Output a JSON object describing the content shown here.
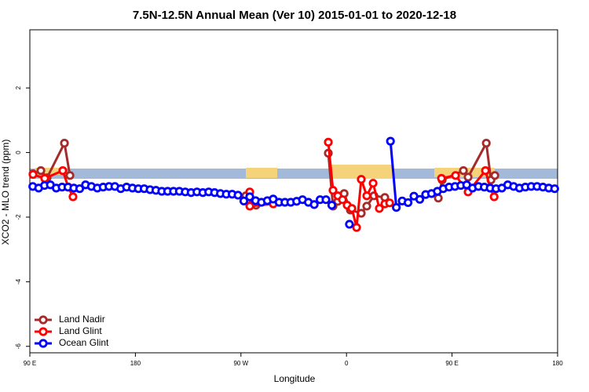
{
  "chart_data": {
    "type": "line",
    "title": "7.5N-12.5N Annual Mean (Ver 10)   2015-01-01 to 2020-12-18",
    "x_label": "Longitude",
    "y_label": "XCO2 - MLO trend (ppm)",
    "xlim": [
      90,
      540
    ],
    "ylim": [
      -6.2,
      3.8
    ],
    "xticks": [
      {
        "value": 90,
        "label": "90 E"
      },
      180,
      {
        "value": 270,
        "label": "90 W"
      },
      {
        "value": 360,
        "label": "0"
      },
      {
        "value": 450,
        "label": "90 E"
      },
      {
        "value": 540,
        "label": "180"
      }
    ],
    "yticks": [
      -6,
      -4,
      -2,
      0,
      2
    ],
    "legend": "bottom-left",
    "series": [
      {
        "name": "Land Nadir",
        "color": "#a52a2a",
        "x": [
          92.7,
          99.4,
          104.7,
          119.5,
          124.2,
          200,
          274.2,
          282.9,
          320,
          344.5,
          348.5,
          352.6,
          358,
          363.3,
          372.6,
          377.3,
          383.4,
          392.7,
          420,
          438.3,
          441.6,
          459.7,
          463.7,
          479.2,
          483.2,
          486.5
        ],
        "values": [
          -0.66,
          -0.56,
          -0.78,
          0.29,
          -0.71,
          null,
          -1.34,
          -1.63,
          null,
          -0.02,
          -1.66,
          -1.51,
          -1.27,
          -1.78,
          -1.88,
          -1.66,
          -1.34,
          -1.39,
          null,
          -1.41,
          -0.85,
          -0.56,
          -0.76,
          0.29,
          -0.85,
          -0.71
        ]
      },
      {
        "name": "Land Glint",
        "color": "#ff0000",
        "x": [
          92.7,
          102.7,
          118.1,
          122.8,
          126.8,
          200,
          277.5,
          277.6,
          297.6,
          320,
          344.5,
          348.5,
          352.6,
          356.6,
          360.6,
          364.6,
          368.6,
          372.6,
          377.3,
          382.7,
          388,
          392.7,
          396.8,
          420,
          441,
          453,
          463.7,
          478.5,
          482.5,
          485.9
        ],
        "values": [
          -0.68,
          -0.8,
          -0.56,
          -1.07,
          -1.37,
          null,
          -1.22,
          -1.66,
          -1.59,
          null,
          0.32,
          -1.17,
          -1.34,
          -1.46,
          -1.63,
          -1.73,
          -2.32,
          -0.83,
          -1.34,
          -0.95,
          -1.73,
          -1.59,
          -1.56,
          null,
          -0.8,
          -0.71,
          -1.22,
          -0.56,
          -1.1,
          -1.37
        ]
      },
      {
        "name": "Ocean Glint",
        "color": "#0000ff",
        "x": [
          92.5,
          97.5,
          102.5,
          107.5,
          112.5,
          117.5,
          122.5,
          127.5,
          132.5,
          137.5,
          142.5,
          147.5,
          152.5,
          157.5,
          162.5,
          167.5,
          172.5,
          177.5,
          182.5,
          187.5,
          192.5,
          197.5,
          202.5,
          207.5,
          212.5,
          217.5,
          222.5,
          227.5,
          232.5,
          237.5,
          242.5,
          247.5,
          252.5,
          257.5,
          262.5,
          267.5,
          272.5,
          277.5,
          282.5,
          287.5,
          292.5,
          297.5,
          302.5,
          307.5,
          312.5,
          317.5,
          322.5,
          327.5,
          332.5,
          337.5,
          342.5,
          347.5,
          352.5,
          357.5,
          362.5,
          367.5,
          372.5,
          377.5,
          382.5,
          387.5,
          392.5,
          397.5,
          402.5,
          407.5,
          412.5,
          417.5,
          422.5,
          427.5,
          432.5,
          437.5,
          442.5,
          447.5,
          452.5,
          457.5,
          462.5,
          467.5,
          472.5,
          477.5,
          482.5,
          487.5,
          492.5,
          497.5,
          502.5,
          507.5,
          512.5,
          517.5,
          522.5,
          527.5,
          532.5,
          537.5
        ],
        "values": [
          -1.05,
          -1.1,
          -1.02,
          -1.0,
          -1.1,
          -1.07,
          -1.07,
          -1.1,
          -1.12,
          -1.0,
          -1.05,
          -1.1,
          -1.07,
          -1.05,
          -1.05,
          -1.12,
          -1.07,
          -1.1,
          -1.12,
          -1.12,
          -1.15,
          -1.17,
          -1.2,
          -1.2,
          -1.2,
          -1.2,
          -1.22,
          -1.24,
          -1.22,
          -1.24,
          -1.22,
          -1.24,
          -1.27,
          -1.29,
          -1.29,
          -1.32,
          -1.5,
          -1.37,
          -1.49,
          -1.54,
          -1.49,
          -1.44,
          -1.54,
          -1.54,
          -1.54,
          -1.51,
          -1.46,
          -1.54,
          -1.61,
          -1.46,
          -1.46,
          -1.63,
          null,
          null,
          -2.22,
          null,
          null,
          null,
          null,
          null,
          null,
          0.35,
          -1.7,
          -1.5,
          -1.55,
          -1.35,
          -1.45,
          -1.3,
          -1.27,
          -1.2,
          -1.12,
          -1.07,
          -1.05,
          -1.02,
          -1.0,
          -1.1,
          -1.05,
          -1.07,
          -1.1,
          -1.12,
          -1.1,
          -1.0,
          -1.05,
          -1.1,
          -1.07,
          -1.05,
          -1.05,
          -1.07,
          -1.1,
          -1.12
        ]
      }
    ]
  }
}
